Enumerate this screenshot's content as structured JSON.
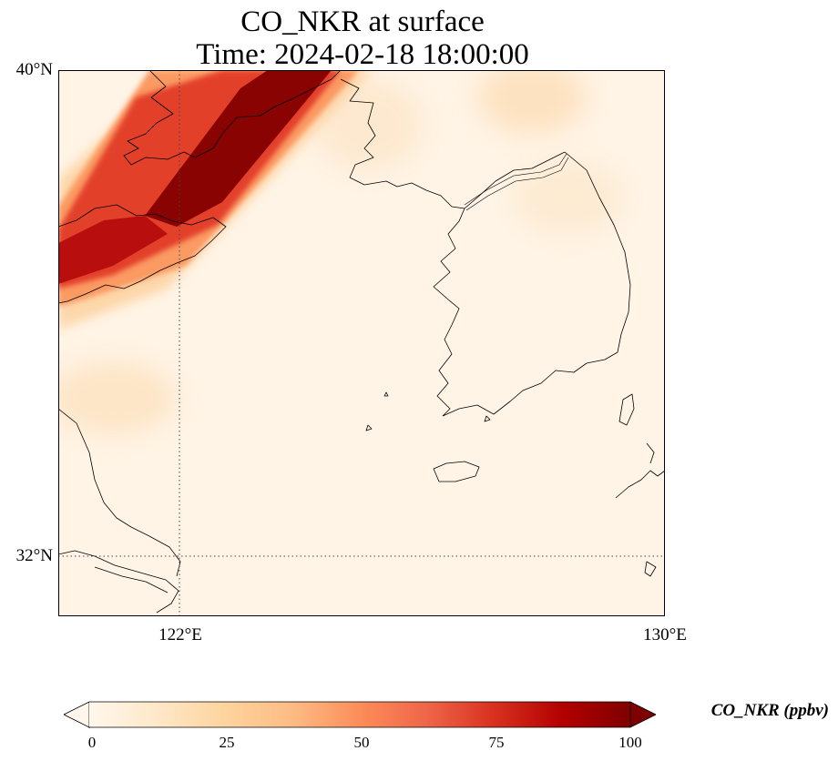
{
  "title": {
    "line1": "CO_NKR at surface",
    "line2": "Time: 2024-02-18 18:00:00"
  },
  "map": {
    "variable": "CO_NKR",
    "level": "surface",
    "lat_labels": [
      "40°N",
      "32°N"
    ],
    "lon_labels": [
      "122°E",
      "130°E"
    ],
    "extent": {
      "lon_min": 120,
      "lon_max": 130,
      "lat_min": 31,
      "lat_max": 40
    },
    "gridlines": {
      "lon": [
        122
      ],
      "lat": [
        32
      ],
      "style": "dotted"
    },
    "plume": {
      "description_units": "ppbv",
      "core_max_value": 100
    }
  },
  "colorbar": {
    "label": "CO_NKR (ppbv)",
    "ticks": [
      "0",
      "25",
      "50",
      "75",
      "100"
    ],
    "range": [
      0,
      100
    ],
    "extend": "both",
    "colormap": "OrRd",
    "colors": [
      "#fff7ec",
      "#fee8c8",
      "#fdd49e",
      "#fdbb84",
      "#fc8d59",
      "#ef6548",
      "#d7301f",
      "#b30000",
      "#7f0000"
    ]
  }
}
